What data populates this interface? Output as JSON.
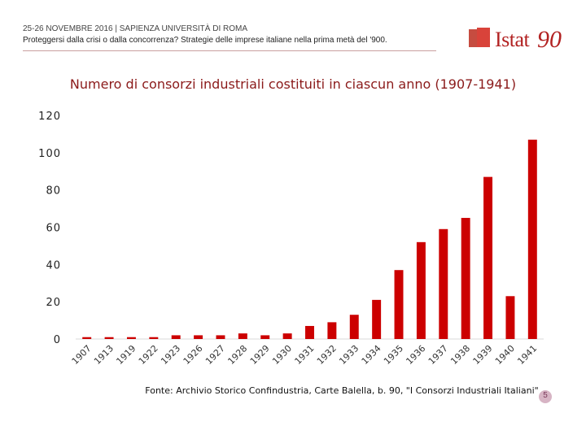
{
  "header": {
    "event_line": "25-26 NOVEMBRE 2016 | SAPIENZA UNIVERSITÀ DI ROMA",
    "subtitle_line": "Proteggersi dalla crisi o dalla concorrenza? Strategie delle imprese italiane nella prima metà del '900."
  },
  "logo": {
    "text": "Istat",
    "number": "90"
  },
  "colors": {
    "bar": "#cc0000",
    "accent": "#8b1a1a"
  },
  "footer": {
    "source": "Fonte: Archivio Storico Confindustria, Carte Balella, b. 90, \"I Consorzi Industriali Italiani\"",
    "page_number": "5"
  },
  "chart_data": {
    "type": "bar",
    "title": "Numero di consorzi industriali costituiti in ciascun anno  (1907-1941)",
    "categories": [
      "1907",
      "1913",
      "1919",
      "1922",
      "1923",
      "1926",
      "1927",
      "1928",
      "1929",
      "1930",
      "1931",
      "1932",
      "1933",
      "1934",
      "1935",
      "1936",
      "1937",
      "1938",
      "1939",
      "1940",
      "1941"
    ],
    "values": [
      1,
      1,
      1,
      1,
      2,
      2,
      2,
      3,
      2,
      3,
      7,
      9,
      13,
      21,
      37,
      52,
      59,
      65,
      87,
      23,
      107
    ],
    "ylim": [
      0,
      120
    ],
    "yticks": [
      "0",
      "20",
      "40",
      "60",
      "80",
      "100",
      "120"
    ],
    "xlabel": "",
    "ylabel": "",
    "grid": false
  }
}
